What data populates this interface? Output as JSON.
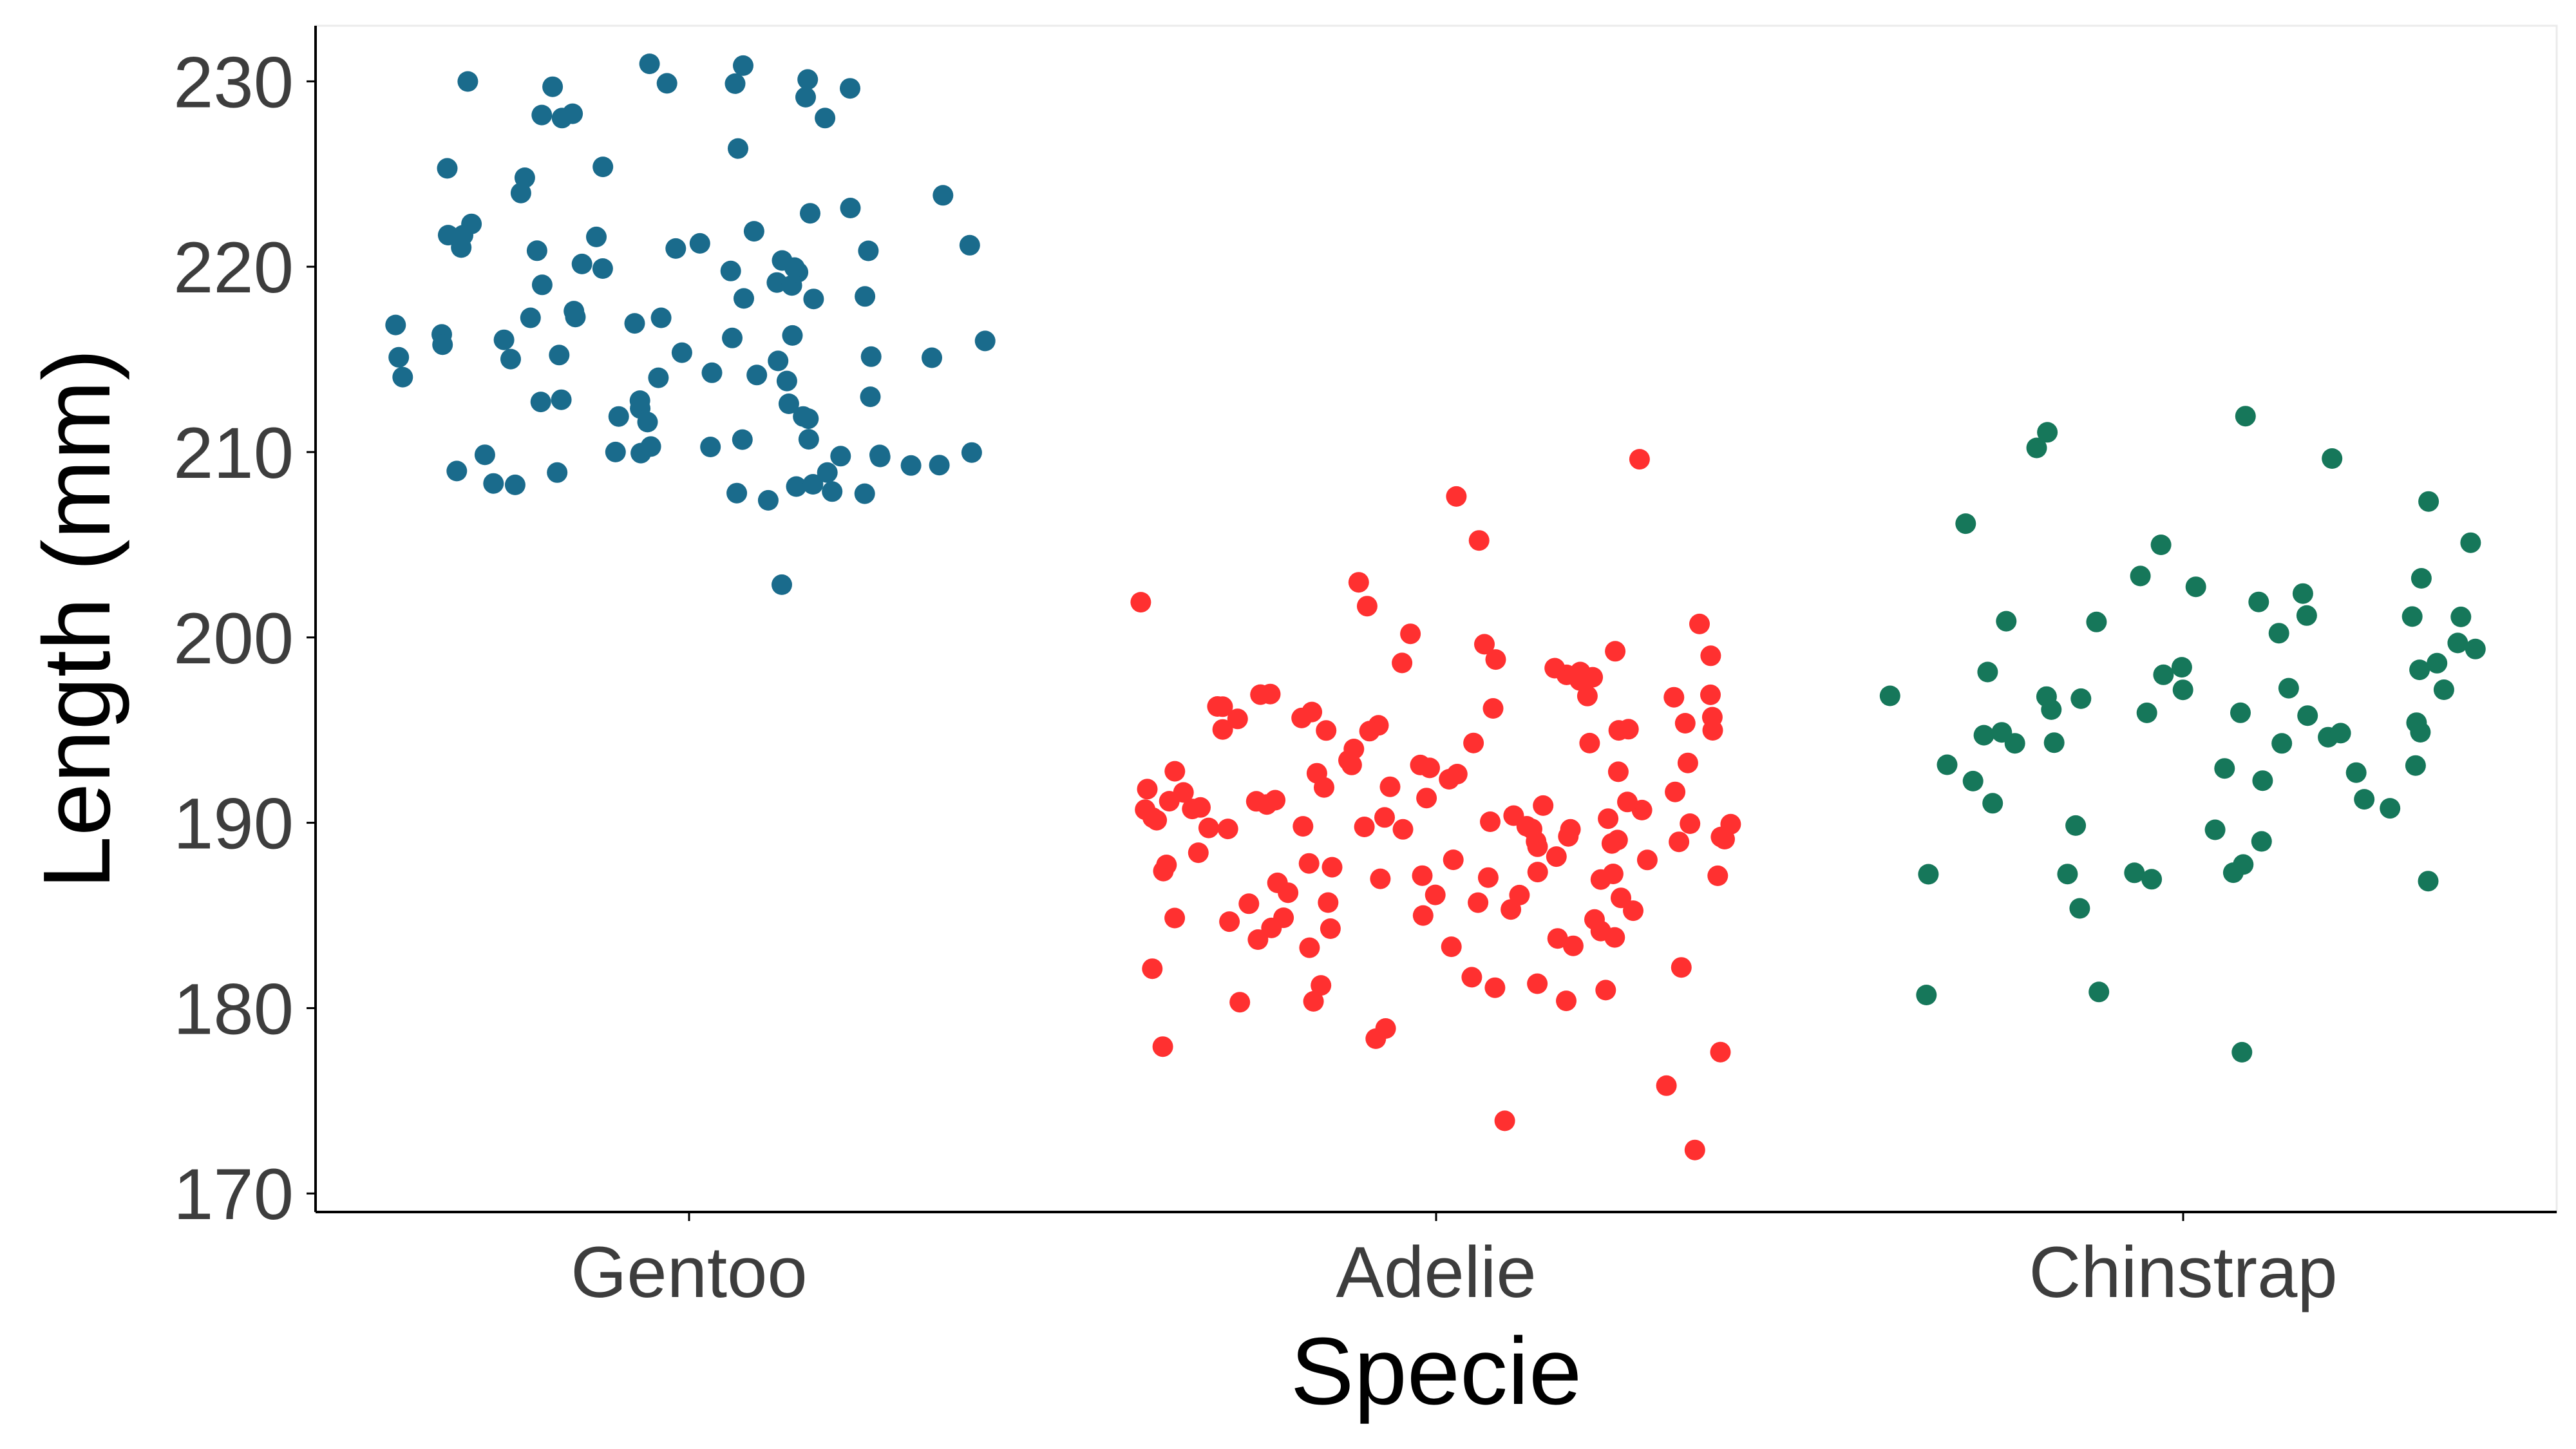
{
  "chart_data": {
    "type": "scatter",
    "xlabel": "Specie",
    "ylabel": "Length (mm)",
    "categories": [
      "Gentoo",
      "Adelie",
      "Chinstrap"
    ],
    "ylim": [
      169,
      233
    ],
    "yticks": [
      170,
      180,
      190,
      200,
      210,
      220,
      230
    ],
    "grid": false,
    "legend": "none",
    "jitter": "horizontal within each category",
    "series": [
      {
        "category": "Gentoo",
        "color": "#1a6b8c",
        "values": [
          203,
          207,
          208,
          208,
          208,
          208,
          208,
          208,
          208,
          209,
          209,
          209,
          209,
          209,
          210,
          210,
          210,
          210,
          210,
          210,
          210,
          210,
          210,
          211,
          211,
          212,
          212,
          212,
          212,
          212,
          213,
          213,
          213,
          213,
          213,
          214,
          214,
          214,
          214,
          214,
          215,
          215,
          215,
          215,
          215,
          215,
          215,
          216,
          216,
          216,
          216,
          216,
          216,
          217,
          217,
          217,
          217,
          217,
          218,
          218,
          218,
          218,
          219,
          219,
          219,
          220,
          220,
          220,
          220,
          220,
          220,
          221,
          221,
          221,
          221,
          221,
          221,
          222,
          222,
          222,
          222,
          222,
          223,
          223,
          224,
          224,
          225,
          225,
          225,
          226,
          228,
          228,
          228,
          228,
          229,
          230,
          230,
          230,
          230,
          230,
          230,
          231,
          231
        ]
      },
      {
        "category": "Adelie",
        "color": "#ff3030",
        "values": [
          172,
          174,
          176,
          178,
          178,
          178,
          179,
          180,
          180,
          180,
          181,
          181,
          181,
          181,
          182,
          182,
          182,
          183,
          183,
          183,
          184,
          184,
          184,
          184,
          184,
          184,
          185,
          185,
          185,
          185,
          185,
          185,
          185,
          186,
          186,
          186,
          186,
          186,
          186,
          186,
          187,
          187,
          187,
          187,
          187,
          187,
          187,
          187,
          187,
          188,
          188,
          188,
          188,
          188,
          188,
          188,
          189,
          189,
          189,
          189,
          189,
          189,
          189,
          189,
          190,
          190,
          190,
          190,
          190,
          190,
          190,
          190,
          190,
          190,
          190,
          190,
          190,
          190,
          190,
          190,
          191,
          191,
          191,
          191,
          191,
          191,
          191,
          191,
          191,
          191,
          191,
          192,
          192,
          192,
          192,
          192,
          192,
          193,
          193,
          193,
          193,
          193,
          193,
          193,
          193,
          193,
          194,
          194,
          194,
          195,
          195,
          195,
          195,
          195,
          195,
          195,
          195,
          196,
          196,
          196,
          196,
          196,
          196,
          196,
          197,
          197,
          197,
          197,
          197,
          198,
          198,
          198,
          198,
          198,
          199,
          199,
          199,
          199,
          200,
          200,
          201,
          202,
          202,
          203,
          205,
          208,
          210
        ]
      },
      {
        "category": "Chinstrap",
        "color": "#16775a",
        "values": [
          178,
          181,
          181,
          185,
          187,
          187,
          187,
          187,
          187,
          187,
          188,
          189,
          190,
          190,
          191,
          191,
          191,
          192,
          192,
          193,
          193,
          193,
          193,
          194,
          194,
          194,
          195,
          195,
          195,
          195,
          195,
          195,
          196,
          196,
          196,
          196,
          197,
          197,
          197,
          197,
          197,
          197,
          198,
          198,
          198,
          198,
          199,
          199,
          200,
          200,
          201,
          201,
          201,
          201,
          201,
          202,
          202,
          203,
          203,
          203,
          205,
          205,
          206,
          207,
          210,
          210,
          211,
          212
        ]
      }
    ]
  }
}
